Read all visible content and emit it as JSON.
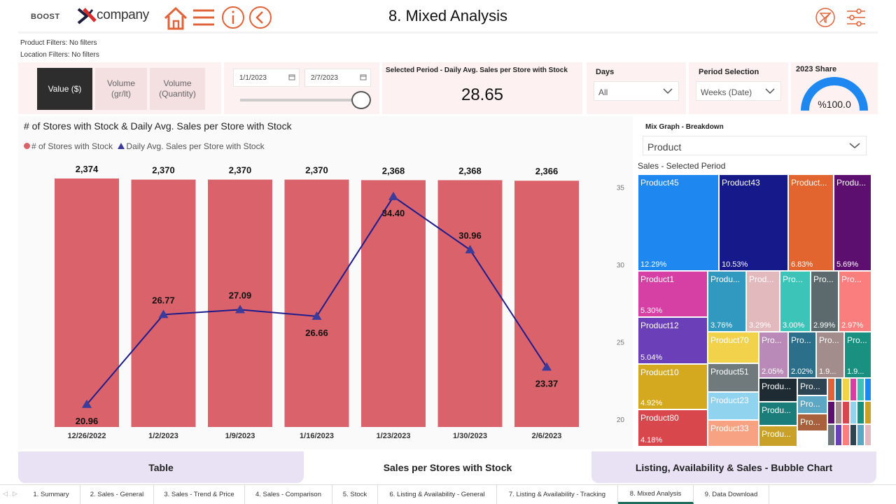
{
  "header": {
    "brand_small": "BOOST",
    "brand_name": "company",
    "title": "8. Mixed Analysis",
    "icons": [
      "home-icon",
      "menu-icon",
      "info-icon",
      "back-icon",
      "clear-filter-icon",
      "filter-settings-icon"
    ],
    "accent": "#e0633a"
  },
  "filters": {
    "product": "Product Filters: No filters",
    "location": "Location Filters: No filters"
  },
  "measure_toggle": {
    "options": [
      "Value ($)",
      "Volume\n(gr/lt)",
      "Volume\n(Quantity)"
    ],
    "selected": "Value ($)"
  },
  "date_range": {
    "start": "1/1/2023",
    "end": "2/7/2023"
  },
  "kpi": {
    "label": "Selected Period - Daily Avg. Sales per Store with Stock",
    "value": "28.65"
  },
  "days": {
    "label": "Days",
    "value": "All"
  },
  "period": {
    "label": "Period Selection",
    "value": "Weeks (Date)"
  },
  "share": {
    "label": "2023 Share",
    "value": "%100.0",
    "fraction": 1.0
  },
  "chart_data": {
    "type": "bar",
    "title": "# of Stores with Stock & Daily Avg. Sales per Store with Stock",
    "categories": [
      "12/26/2022",
      "1/2/2023",
      "1/9/2023",
      "1/16/2023",
      "1/23/2023",
      "1/30/2023",
      "2/6/2023"
    ],
    "series": [
      {
        "name": "# of Stores with Stock",
        "type": "bar",
        "values": [
          2374,
          2370,
          2370,
          2370,
          2368,
          2368,
          2366
        ],
        "labels": [
          "2,374",
          "2,370",
          "2,370",
          "2,370",
          "2,368",
          "2,368",
          "2,366"
        ],
        "color": "#d9626b"
      },
      {
        "name": "Daily Avg. Sales per Store with Stock",
        "type": "line",
        "values": [
          20.96,
          26.77,
          27.09,
          26.66,
          34.4,
          30.96,
          23.37
        ],
        "labels": [
          "20.96",
          "26.77",
          "27.09",
          "26.66",
          "34.40",
          "30.96",
          "23.37"
        ],
        "color": "#1c1c8c"
      }
    ],
    "y2_ticks": [
      "35",
      "30",
      "25",
      "20"
    ],
    "y2lim": [
      19.5,
      35.8
    ],
    "legend": "top-left",
    "grid": false
  },
  "mix": {
    "label": "Mix Graph - Breakdown",
    "value": "Product",
    "treemap_title": "Sales - Selected Period",
    "cells": [
      {
        "name": "Product45",
        "pct": "12.29%",
        "color": "#1e88f0"
      },
      {
        "name": "Product43",
        "pct": "10.53%",
        "color": "#15198a"
      },
      {
        "name": "Product...",
        "pct": "6.83%",
        "color": "#e2642f"
      },
      {
        "name": "Produ...",
        "pct": "5.69%",
        "color": "#5c0f6e"
      },
      {
        "name": "Product1",
        "pct": "5.30%",
        "color": "#d63fa3"
      },
      {
        "name": "Produ...",
        "pct": "3.76%",
        "color": "#3199bf"
      },
      {
        "name": "Prod...",
        "pct": "3.29%",
        "color": "#e2b9bd"
      },
      {
        "name": "Pro...",
        "pct": "3.00%",
        "color": "#3cc4b8"
      },
      {
        "name": "Pro...",
        "pct": "2.99%",
        "color": "#5c6a6e"
      },
      {
        "name": "Pro...",
        "pct": "2.97%",
        "color": "#f97e7d"
      },
      {
        "name": "Product12",
        "pct": "5.04%",
        "color": "#6b3fb8"
      },
      {
        "name": "Product70",
        "pct": "",
        "color": "#f2d24a"
      },
      {
        "name": "Pro...",
        "pct": "2.05%",
        "color": "#b98ab8"
      },
      {
        "name": "Pro...",
        "pct": "2.02%",
        "color": "#2b6f8a"
      },
      {
        "name": "Pro...",
        "pct": "1.9...",
        "color": "#a38c8c"
      },
      {
        "name": "Pro...",
        "pct": "1.9...",
        "color": "#1a9080"
      },
      {
        "name": "Product10",
        "pct": "4.92%",
        "color": "#d4a91f"
      },
      {
        "name": "Product51",
        "pct": "",
        "color": "#707a7c"
      },
      {
        "name": "Product23",
        "pct": "",
        "color": "#8fd3ef"
      },
      {
        "name": "Product33",
        "pct": "",
        "color": "#f7a283"
      },
      {
        "name": "Product80",
        "pct": "4.18%",
        "color": "#d8474c"
      },
      {
        "name": "Produ...",
        "pct": "",
        "color": "#1f2b33"
      },
      {
        "name": "Produ...",
        "pct": "",
        "color": "#1b7d7a"
      },
      {
        "name": "Produ...",
        "pct": "",
        "color": "#c9a128"
      },
      {
        "name": "Pro...",
        "pct": "",
        "color": "#2d4452"
      },
      {
        "name": "Pro...",
        "pct": "",
        "color": "#5ca7c4"
      },
      {
        "name": "Pro...",
        "pct": "",
        "color": "#a8613c"
      }
    ]
  },
  "bottom_tabs": [
    "Table",
    "Sales per Stores with Stock",
    "Listing, Availability & Sales - Bubble Chart"
  ],
  "page_tabs": [
    "1. Summary",
    "2. Sales - General",
    "3. Sales - Trend & Price",
    "4. Sales - Comparison",
    "5. Stock",
    "6. Listing & Availability - General",
    "7. Listing & Availability - Tracking",
    "8. Mixed Analysis",
    "9. Data Download"
  ],
  "active_page_tab": "8. Mixed Analysis"
}
